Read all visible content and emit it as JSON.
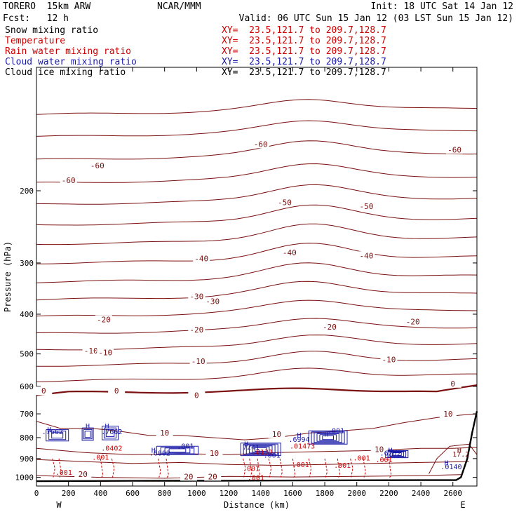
{
  "header": {
    "model": "TORERO  15km ARW",
    "org": "NCAR/MMM",
    "init": "Init: 18 UTC Sat 14 Jan 12",
    "fcst": "Fcst:   12 h",
    "valid": "Valid: 06 UTC Sun 15 Jan 12 (03 LST Sun 15 Jan 12)"
  },
  "fields": [
    {
      "label": "Snow mixing ratio",
      "xy": "XY=  23.5,121.7 to 209.7,128.7",
      "color": "#000000",
      "xy_color": "#cc0000"
    },
    {
      "label": "Temperature",
      "xy": "XY=  23.5,121.7 to 209.7,128.7",
      "color": "#cc0000",
      "xy_color": "#cc0000"
    },
    {
      "label": "Rain water mixing ratio",
      "xy": "XY=  23.5,121.7 to 209.7,128.7",
      "color": "#cc0000",
      "xy_color": "#cc0000"
    },
    {
      "label": "Cloud water mixing ratio",
      "xy": "XY=  23.5,121.7 to 209.7,128.7",
      "color": "#1a1aa8",
      "xy_color": "#1a1aa8"
    },
    {
      "label": "Cloud ice mixing ratio",
      "xy": "XY=  23.5,121.7 to 209.7,128.7",
      "color": "#000000",
      "xy_color": "#000000"
    }
  ],
  "chart_data": {
    "type": "contour",
    "xlabel": "Distance (km)",
    "ylabel": "Pressure (hPa)",
    "xlim": [
      0,
      2750
    ],
    "ylim": [
      1050,
      100
    ],
    "xticks": [
      0,
      200,
      400,
      600,
      800,
      1000,
      1200,
      1400,
      1600,
      1800,
      2000,
      2200,
      2400,
      2600
    ],
    "yticks": [
      200,
      300,
      400,
      500,
      600,
      700,
      800,
      900,
      1000
    ],
    "x_end_labels": [
      "W",
      "E"
    ],
    "temperature_contour_labels": [
      {
        "value": "-60",
        "x": 1400,
        "p": 155
      },
      {
        "value": "-60",
        "x": 2610,
        "p": 160
      },
      {
        "value": "-60",
        "x": 380,
        "p": 175
      },
      {
        "value": "-60",
        "x": 200,
        "p": 190
      },
      {
        "value": "-50",
        "x": 1550,
        "p": 215
      },
      {
        "value": "-50",
        "x": 2060,
        "p": 220
      },
      {
        "value": "-40",
        "x": 1580,
        "p": 285
      },
      {
        "value": "-40",
        "x": 1030,
        "p": 295
      },
      {
        "value": "-40",
        "x": 2060,
        "p": 290
      },
      {
        "value": "-30",
        "x": 1000,
        "p": 365
      },
      {
        "value": "-30",
        "x": 1100,
        "p": 375
      },
      {
        "value": "-20",
        "x": 420,
        "p": 415
      },
      {
        "value": "-20",
        "x": 2350,
        "p": 420
      },
      {
        "value": "-20",
        "x": 1830,
        "p": 433
      },
      {
        "value": "-20",
        "x": 1000,
        "p": 440
      },
      {
        "value": "-10",
        "x": 340,
        "p": 495
      },
      {
        "value": "-10",
        "x": 430,
        "p": 500
      },
      {
        "value": "-10",
        "x": 1010,
        "p": 525
      },
      {
        "value": "-10",
        "x": 2200,
        "p": 520
      },
      {
        "value": "0",
        "x": 45,
        "p": 620
      },
      {
        "value": "0",
        "x": 500,
        "p": 620
      },
      {
        "value": "0",
        "x": 1000,
        "p": 635
      },
      {
        "value": "0",
        "x": 2600,
        "p": 595
      },
      {
        "value": "10",
        "x": 2570,
        "p": 705
      },
      {
        "value": "10",
        "x": 800,
        "p": 785
      },
      {
        "value": "10",
        "x": 1500,
        "p": 790
      },
      {
        "value": "10",
        "x": 1110,
        "p": 880
      },
      {
        "value": "10",
        "x": 2140,
        "p": 860
      },
      {
        "value": "20",
        "x": 290,
        "p": 990
      },
      {
        "value": "20",
        "x": 950,
        "p": 1003
      },
      {
        "value": "20",
        "x": 1100,
        "p": 1003
      }
    ],
    "extrema_labels": [
      {
        "text": "H",
        "x": 80,
        "p": 775,
        "color": "blue"
      },
      {
        "text": ".7662",
        "x": 100,
        "p": 785,
        "color": "blue"
      },
      {
        "text": "H",
        "x": 320,
        "p": 760,
        "color": "blue"
      },
      {
        "text": "H",
        "x": 440,
        "p": 760,
        "color": "blue"
      },
      {
        "text": ".7662",
        "x": 470,
        "p": 785,
        "color": "blue"
      },
      {
        "text": ".0402",
        "x": 470,
        "p": 860,
        "color": "red"
      },
      {
        "text": ".001",
        "x": 400,
        "p": 905,
        "color": "red"
      },
      {
        "text": ".001",
        "x": 170,
        "p": 985,
        "color": "red"
      },
      {
        "text": "H",
        "x": 730,
        "p": 870,
        "color": "blue"
      },
      {
        "text": ".001",
        "x": 930,
        "p": 850,
        "color": "blue"
      },
      {
        "text": ".6002",
        "x": 770,
        "p": 885,
        "color": "blue"
      },
      {
        "text": "H",
        "x": 1310,
        "p": 840,
        "color": "blue"
      },
      {
        "text": "7241",
        "x": 1340,
        "p": 855,
        "color": "blue"
      },
      {
        "text": ".0131",
        "x": 1410,
        "p": 880,
        "color": "red"
      },
      {
        "text": ".001",
        "x": 1470,
        "p": 895,
        "color": "blue"
      },
      {
        "text": ".001",
        "x": 1340,
        "p": 965,
        "color": "red"
      },
      {
        "text": ".001",
        "x": 1370,
        "p": 1015,
        "color": "red"
      },
      {
        "text": "H",
        "x": 1640,
        "p": 800,
        "color": "blue"
      },
      {
        "text": ".6994",
        "x": 1640,
        "p": 820,
        "color": "blue"
      },
      {
        "text": ".01473",
        "x": 1660,
        "p": 850,
        "color": "red"
      },
      {
        "text": ".001",
        "x": 1870,
        "p": 780,
        "color": "blue"
      },
      {
        "text": "H",
        "x": 1810,
        "p": 795,
        "color": "blue"
      },
      {
        "text": ".001",
        "x": 1650,
        "p": 945,
        "color": "red"
      },
      {
        "text": ".001",
        "x": 1910,
        "p": 948,
        "color": "red"
      },
      {
        "text": ".001",
        "x": 2030,
        "p": 910,
        "color": "red"
      },
      {
        "text": "H",
        "x": 2210,
        "p": 870,
        "color": "blue"
      },
      {
        "text": ".6262",
        "x": 2210,
        "p": 885,
        "color": "blue"
      },
      {
        "text": ".001",
        "x": 2170,
        "p": 918,
        "color": "red"
      },
      {
        "text": "H",
        "x": 2640,
        "p": 870,
        "color": "maroon"
      },
      {
        "text": "17.2",
        "x": 2650,
        "p": 890,
        "color": "maroon"
      },
      {
        "text": "H",
        "x": 2560,
        "p": 935,
        "color": "blue"
      },
      {
        "text": ".0140",
        "x": 2590,
        "p": 955,
        "color": "blue"
      }
    ]
  }
}
